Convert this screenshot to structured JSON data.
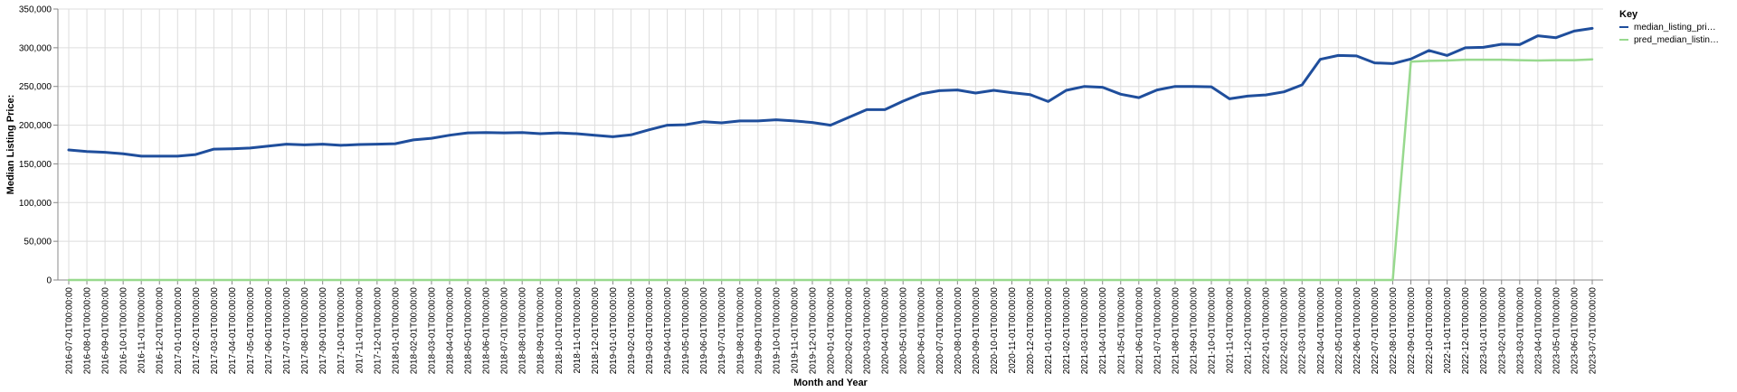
{
  "chart_data": {
    "type": "line",
    "xlabel": "Month and Year",
    "ylabel": "Median Listing Price:",
    "ylim": [
      0,
      350000
    ],
    "yticks": [
      "0",
      "50,000",
      "100,000",
      "150,000",
      "200,000",
      "250,000",
      "300,000",
      "350,000"
    ],
    "grid": true,
    "legend": {
      "title": "Key",
      "placement": "top-right",
      "entries": [
        "median_listing_pri…",
        "pred_median_listin…"
      ]
    },
    "x": [
      "2016-07-01T00:00:00",
      "2016-08-01T00:00:00",
      "2016-09-01T00:00:00",
      "2016-10-01T00:00:00",
      "2016-11-01T00:00:00",
      "2016-12-01T00:00:00",
      "2017-01-01T00:00:00",
      "2017-02-01T00:00:00",
      "2017-03-01T00:00:00",
      "2017-04-01T00:00:00",
      "2017-05-01T00:00:00",
      "2017-06-01T00:00:00",
      "2017-07-01T00:00:00",
      "2017-08-01T00:00:00",
      "2017-09-01T00:00:00",
      "2017-10-01T00:00:00",
      "2017-11-01T00:00:00",
      "2017-12-01T00:00:00",
      "2018-01-01T00:00:00",
      "2018-02-01T00:00:00",
      "2018-03-01T00:00:00",
      "2018-04-01T00:00:00",
      "2018-05-01T00:00:00",
      "2018-06-01T00:00:00",
      "2018-07-01T00:00:00",
      "2018-08-01T00:00:00",
      "2018-09-01T00:00:00",
      "2018-10-01T00:00:00",
      "2018-11-01T00:00:00",
      "2018-12-01T00:00:00",
      "2019-01-01T00:00:00",
      "2019-02-01T00:00:00",
      "2019-03-01T00:00:00",
      "2019-04-01T00:00:00",
      "2019-05-01T00:00:00",
      "2019-06-01T00:00:00",
      "2019-07-01T00:00:00",
      "2019-08-01T00:00:00",
      "2019-09-01T00:00:00",
      "2019-10-01T00:00:00",
      "2019-11-01T00:00:00",
      "2019-12-01T00:00:00",
      "2020-01-01T00:00:00",
      "2020-02-01T00:00:00",
      "2020-03-01T00:00:00",
      "2020-04-01T00:00:00",
      "2020-05-01T00:00:00",
      "2020-06-01T00:00:00",
      "2020-07-01T00:00:00",
      "2020-08-01T00:00:00",
      "2020-09-01T00:00:00",
      "2020-10-01T00:00:00",
      "2020-11-01T00:00:00",
      "2020-12-01T00:00:00",
      "2021-01-01T00:00:00",
      "2021-02-01T00:00:00",
      "2021-03-01T00:00:00",
      "2021-04-01T00:00:00",
      "2021-05-01T00:00:00",
      "2021-06-01T00:00:00",
      "2021-07-01T00:00:00",
      "2021-08-01T00:00:00",
      "2021-09-01T00:00:00",
      "2021-10-01T00:00:00",
      "2021-11-01T00:00:00",
      "2021-12-01T00:00:00",
      "2022-01-01T00:00:00",
      "2022-02-01T00:00:00",
      "2022-03-01T00:00:00",
      "2022-04-01T00:00:00",
      "2022-05-01T00:00:00",
      "2022-06-01T00:00:00",
      "2022-07-01T00:00:00",
      "2022-08-01T00:00:00",
      "2022-09-01T00:00:00",
      "2022-10-01T00:00:00",
      "2022-11-01T00:00:00",
      "2022-12-01T00:00:00",
      "2023-01-01T00:00:00",
      "2023-02-01T00:00:00",
      "2023-03-01T00:00:00",
      "2023-04-01T00:00:00",
      "2023-05-01T00:00:00",
      "2023-06-01T00:00:00",
      "2023-07-01T00:00:00"
    ],
    "series": [
      {
        "name": "median_listing_pri…",
        "color": "#1f4e9c",
        "values": [
          168000,
          166000,
          165000,
          163000,
          160000,
          160000,
          160000,
          162000,
          169000,
          169500,
          170500,
          173000,
          175500,
          174500,
          175500,
          174000,
          175000,
          175500,
          176000,
          181000,
          183000,
          187000,
          190000,
          190500,
          190000,
          190500,
          189000,
          190000,
          189000,
          187000,
          185000,
          187500,
          194000,
          200000,
          200500,
          204500,
          203000,
          205500,
          205500,
          207000,
          205500,
          203500,
          200000,
          210000,
          220000,
          220000,
          231000,
          240500,
          244500,
          245500,
          241500,
          245000,
          242000,
          239500,
          230500,
          245000,
          250000,
          249000,
          240000,
          235500,
          245500,
          250000,
          250000,
          249500,
          234000,
          237500,
          239000,
          243000,
          252000,
          285000,
          290000,
          289500,
          280500,
          279500,
          285500,
          296500,
          290000,
          300000,
          300500,
          304500,
          304000,
          315500,
          313000,
          321500,
          325000
        ]
      },
      {
        "name": "pred_median_listin…",
        "color": "#98d98e",
        "values": [
          0,
          0,
          0,
          0,
          0,
          0,
          0,
          0,
          0,
          0,
          0,
          0,
          0,
          0,
          0,
          0,
          0,
          0,
          0,
          0,
          0,
          0,
          0,
          0,
          0,
          0,
          0,
          0,
          0,
          0,
          0,
          0,
          0,
          0,
          0,
          0,
          0,
          0,
          0,
          0,
          0,
          0,
          0,
          0,
          0,
          0,
          0,
          0,
          0,
          0,
          0,
          0,
          0,
          0,
          0,
          0,
          0,
          0,
          0,
          0,
          0,
          0,
          0,
          0,
          0,
          0,
          0,
          0,
          0,
          0,
          0,
          0,
          0,
          0,
          282000,
          283000,
          283500,
          284500,
          284500,
          284500,
          284000,
          283500,
          284000,
          284000,
          285000
        ]
      }
    ]
  }
}
